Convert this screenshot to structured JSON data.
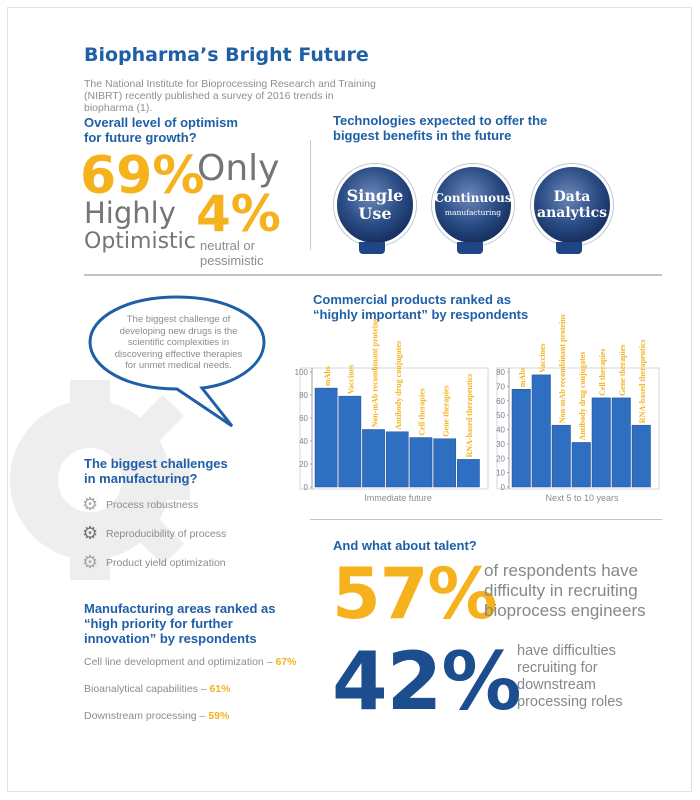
{
  "title": "Biopharma’s Bright Future",
  "intro": "The National Institute for Bioprocessing Research and Training (NIBRT) recently published a survey of 2016 trends in biopharma (1).",
  "optimism": {
    "heading_line1": "Overall level of optimism",
    "heading_line2": "for future growth?",
    "optimistic_pct": "69%",
    "optimistic_line1": "Highly",
    "optimistic_line2": "Optimistic",
    "only": "Only",
    "neutral_pct": "4%",
    "neutral_line1": "neutral or",
    "neutral_line2": "pessimistic"
  },
  "technologies": {
    "heading_line1": "Technologies expected to offer the",
    "heading_line2": "biggest benefits in the future",
    "items": [
      {
        "line1": "Single",
        "line2": "Use"
      },
      {
        "line1": "Continuous",
        "line2": "manufacturing"
      },
      {
        "line1": "Data",
        "line2": "analytics"
      }
    ]
  },
  "quote": "The biggest challenge of developing new drugs is the scientific complexities in discovering effective therapies for unmet medical needs.",
  "challenges": {
    "heading_line1": "The biggest challenges",
    "heading_line2": "in manufacturing?",
    "items": [
      "Process robustness",
      "Reproducibility of process",
      "Product yield optimization"
    ]
  },
  "manufacturing_areas": {
    "heading_line1": "Manufacturing areas ranked as",
    "heading_line2": "“high priority for further",
    "heading_line3": "innovation” by respondents",
    "items": [
      {
        "label": "Cell line development and optimization – ",
        "pct": "67%"
      },
      {
        "label": "Bioanalytical capabilities – ",
        "pct": "61%"
      },
      {
        "label": "Downstream processing – ",
        "pct": "59%"
      }
    ]
  },
  "products": {
    "heading_line1": "Commercial products ranked as",
    "heading_line2": "“highly important” by respondents"
  },
  "chart_data": [
    {
      "type": "bar",
      "xlabel": "Immediate future",
      "ylim": [
        0,
        100
      ],
      "yticks": [
        "0",
        "20",
        "40",
        "60",
        "80",
        "100"
      ],
      "categories": [
        "mAbs",
        "Vaccines",
        "Non-mAb recombinant proteins",
        "Antibody drug conjugates",
        "Cell therapies",
        "Gene therapies",
        "RNA-based therapeutics"
      ],
      "values": [
        86,
        79,
        50,
        48,
        43,
        42,
        24
      ],
      "colors": {
        "bar": "#2f6fc1",
        "label": "#f6b21d"
      }
    },
    {
      "type": "bar",
      "xlabel": "Next 5 to 10 years",
      "ylim": [
        0,
        80
      ],
      "yticks": [
        "0",
        "10",
        "20",
        "30",
        "40",
        "50",
        "60",
        "70",
        "80"
      ],
      "categories": [
        "mAbs",
        "Vaccines",
        "Non-mAb recombinant proteins",
        "Antibody drug conjugates",
        "Cell therapies",
        "Gene therapies",
        "RNA-based therapeutics"
      ],
      "values": [
        68,
        78,
        43,
        31,
        62,
        62,
        43
      ],
      "colors": {
        "bar": "#2f6fc1",
        "label": "#f6b21d"
      }
    }
  ],
  "talent": {
    "heading": "And what about talent?",
    "pct1": "57%",
    "text1_line1": "of respondents have",
    "text1_line2": "difficulty in recruiting",
    "text1_line3": "bioprocess engineers",
    "pct2": "42%",
    "text2_line1": "have difficulties",
    "text2_line2": "recruiting for",
    "text2_line3": "downstream",
    "text2_line4": "processing roles"
  },
  "colors": {
    "accent": "#f6b21d",
    "brand": "#1f5fa6",
    "navy": "#1c4d8e",
    "bar": "#2f6fc1"
  }
}
